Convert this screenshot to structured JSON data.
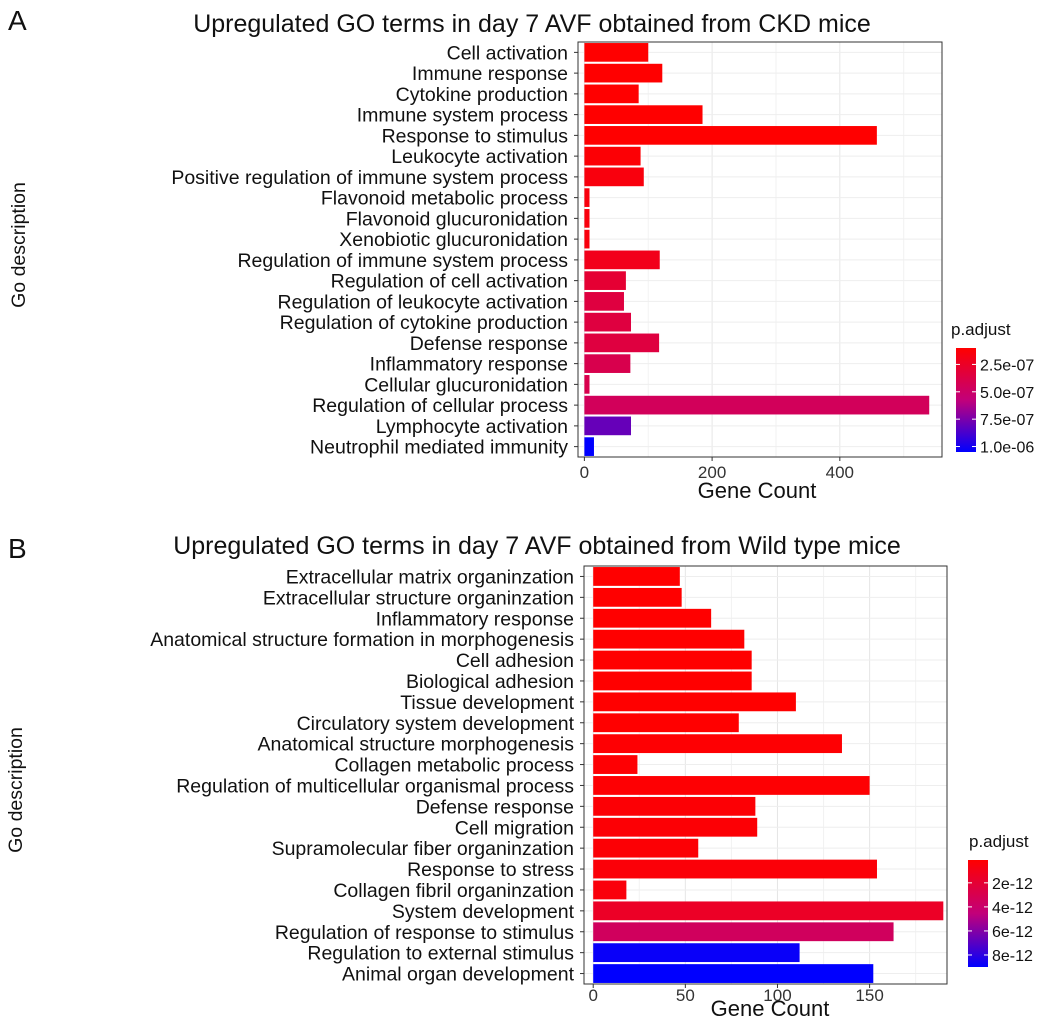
{
  "chart_data": [
    {
      "type": "bar",
      "orientation": "horizontal",
      "panel_label": "A",
      "title": "Upregulated GO terms in day 7 AVF obtained from CKD mice",
      "xlabel": "Gene Count",
      "ylabel": "Go description",
      "xlim": [
        -10,
        560
      ],
      "x_ticks": [
        0,
        200,
        400
      ],
      "grid": true,
      "legend": {
        "title": "p.adjust",
        "position": "right",
        "range": [
          1e-07,
          1.05e-06
        ],
        "ticks": [
          {
            "value": 2.5e-07,
            "label": "2.5e-07"
          },
          {
            "value": 5e-07,
            "label": "5.0e-07"
          },
          {
            "value": 7.5e-07,
            "label": "7.5e-07"
          },
          {
            "value": 1e-06,
            "label": "1.0e-06"
          }
        ]
      },
      "categories": [
        "Cell activation",
        "Immune response",
        "Cytokine production",
        "Immune system process",
        "Response to stimulus",
        "Leukocyte activation",
        "Positive regulation of immune system process",
        "Flavonoid metabolic process",
        "Flavonoid glucuronidation",
        "Xenobiotic glucuronidation",
        "Regulation of immune system process",
        "Regulation of cell activation",
        "Regulation of leukocyte activation",
        "Regulation of cytokine production",
        "Defense response",
        "Inflammatory response",
        "Cellular glucuronidation",
        "Regulation of cellular process",
        "Lymphocyte activation",
        "Neutrophil mediated immunity"
      ],
      "values": [
        100,
        122,
        85,
        185,
        458,
        88,
        93,
        8,
        8,
        8,
        118,
        65,
        62,
        73,
        117,
        72,
        8,
        540,
        73,
        15
      ],
      "p_adjust": [
        1e-07,
        1e-07,
        1e-07,
        1e-07,
        1e-07,
        1.2e-07,
        1.5e-07,
        1.5e-07,
        1.5e-07,
        1.5e-07,
        2e-07,
        3e-07,
        3.5e-07,
        3.5e-07,
        3.5e-07,
        4e-07,
        4e-07,
        4.5e-07,
        8e-07,
        1.05e-06
      ]
    },
    {
      "type": "bar",
      "orientation": "horizontal",
      "panel_label": "B",
      "title": "Upregulated GO terms in day 7 AVF obtained from Wild type mice",
      "xlabel": "Gene Count",
      "ylabel": "Go description",
      "xlim": [
        -5,
        192
      ],
      "x_ticks": [
        0,
        50,
        100,
        150
      ],
      "grid": true,
      "legend": {
        "title": "p.adjust",
        "position": "right",
        "range": [
          1e-13,
          9e-12
        ],
        "ticks": [
          {
            "value": 2e-12,
            "label": "2e-12"
          },
          {
            "value": 4e-12,
            "label": "4e-12"
          },
          {
            "value": 6e-12,
            "label": "6e-12"
          },
          {
            "value": 8e-12,
            "label": "8e-12"
          }
        ]
      },
      "categories": [
        "Extracellular matrix organinzation",
        "Extracellular structure organinzation",
        "Inflammatory response",
        "Anatomical structure formation in morphogenesis",
        "Cell adhesion",
        "Biological adhesion",
        "Tissue development",
        "Circulatory system development",
        "Anatomical structure morphogenesis",
        "Collagen metabolic process",
        "Regulation of multicellular organismal process",
        "Defense response",
        "Cell migration",
        "Supramolecular fiber organinzation",
        "Response to stress",
        "Collagen fibril organinzation",
        "System development",
        "Regulation of response to stimulus",
        "Regulation to external stimulus",
        "Animal organ development"
      ],
      "values": [
        47,
        48,
        64,
        82,
        86,
        86,
        110,
        79,
        135,
        24,
        150,
        88,
        89,
        57,
        154,
        18,
        190,
        163,
        112,
        152
      ],
      "p_adjust": [
        1e-13,
        1e-13,
        1e-13,
        1e-13,
        1e-13,
        1e-13,
        1e-13,
        1e-13,
        2e-13,
        2e-13,
        2e-13,
        3e-13,
        3e-13,
        3e-13,
        4e-13,
        5e-13,
        1.5e-12,
        3.5e-12,
        8.8e-12,
        9e-12
      ]
    }
  ]
}
